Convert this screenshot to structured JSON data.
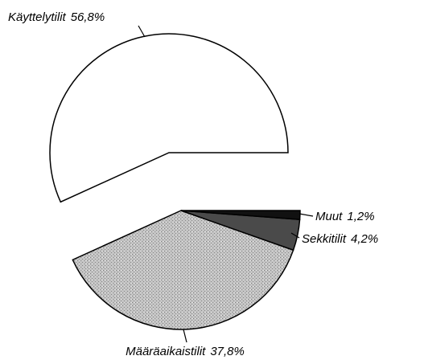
{
  "chart_data": {
    "type": "pie",
    "categories": [
      "Käyttelytilit",
      "Määräaikaistilit",
      "Sekkitilit",
      "Muut"
    ],
    "values": [
      56.8,
      37.8,
      4.2,
      1.2
    ],
    "value_labels": [
      "56,8%",
      "37,8%",
      "4,2%",
      "1,2%"
    ],
    "colors": [
      "#ffffff",
      "#b9b9b9",
      "#4a4a4a",
      "#111111"
    ]
  }
}
